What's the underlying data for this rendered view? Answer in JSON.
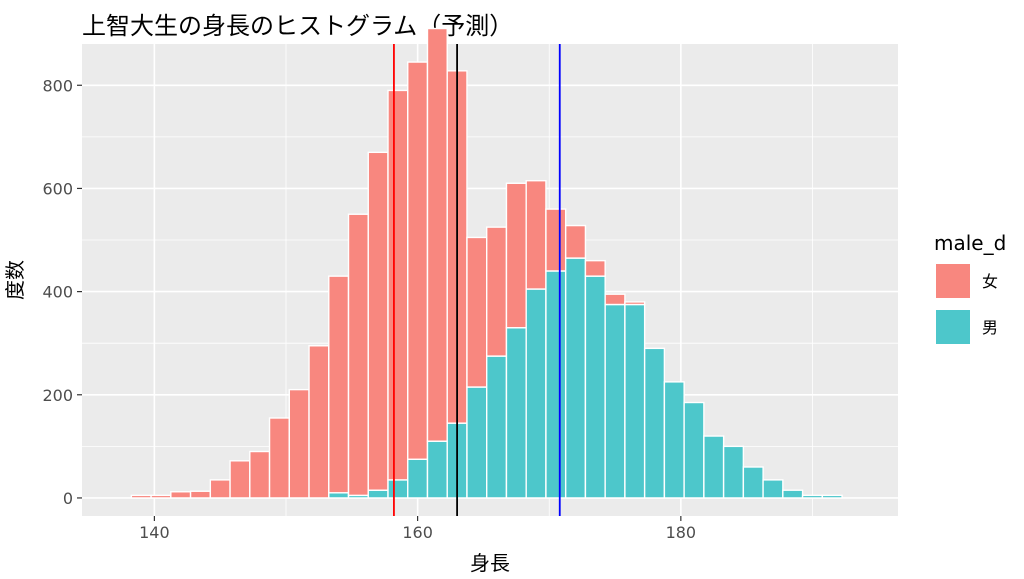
{
  "chart_data": {
    "type": "histogram",
    "title": "上智大生の身長のヒストグラム（予測）",
    "xlabel": "身長",
    "ylabel": "度数",
    "xlim": [
      134.5,
      196.5
    ],
    "ylim": [
      -35,
      880
    ],
    "xticks": [
      140,
      160,
      180
    ],
    "yticks": [
      0,
      200,
      400,
      600,
      800
    ],
    "grid": true,
    "stacked": true,
    "bin_width": 1.5,
    "bin_centers": [
      137.5,
      139.0,
      140.5,
      142.0,
      143.5,
      145.0,
      146.5,
      148.0,
      149.5,
      151.0,
      152.5,
      154.0,
      155.5,
      157.0,
      158.5,
      160.0,
      161.5,
      163.0,
      164.5,
      166.0,
      167.5,
      169.0,
      170.5,
      172.0,
      173.5,
      175.0,
      176.5,
      178.0,
      179.5,
      181.0,
      182.5,
      184.0,
      185.5,
      187.0,
      188.5,
      190.0,
      191.5,
      193.0
    ],
    "legend": {
      "title": "male_d",
      "position": "right"
    },
    "series": [
      {
        "name": "男",
        "color": "#4DC7CB",
        "values": [
          0,
          0,
          0,
          0,
          0,
          0,
          0,
          0,
          0,
          0,
          0,
          10,
          5,
          15,
          35,
          75,
          110,
          145,
          215,
          275,
          330,
          405,
          440,
          465,
          430,
          375,
          375,
          290,
          225,
          185,
          120,
          100,
          60,
          35,
          15,
          5,
          5,
          0
        ]
      },
      {
        "name": "女",
        "color": "#F8877F",
        "values": [
          0,
          5,
          5,
          12,
          13,
          35,
          72,
          90,
          155,
          210,
          295,
          420,
          545,
          655,
          755,
          770,
          800,
          683,
          290,
          250,
          280,
          210,
          120,
          63,
          30,
          20,
          5,
          0,
          0,
          0,
          0,
          0,
          0,
          0,
          0,
          0,
          0,
          0
        ]
      }
    ],
    "vlines": [
      {
        "x": 158.2,
        "color": "#FF0000"
      },
      {
        "x": 163.0,
        "color": "#000000"
      },
      {
        "x": 170.8,
        "color": "#0000FF"
      }
    ]
  }
}
